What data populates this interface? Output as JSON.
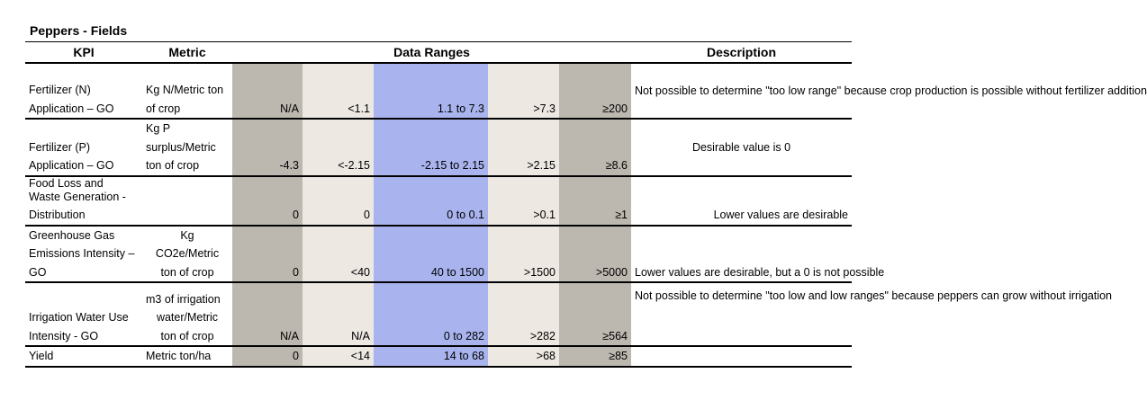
{
  "title": "Peppers - Fields",
  "headers": {
    "kpi": "KPI",
    "metric": "Metric",
    "ranges": "Data Ranges",
    "description": "Description"
  },
  "rows": [
    {
      "kpi": [
        "Fertilizer (N)",
        "Application – GO"
      ],
      "metric": [
        "Kg N/Metric ton",
        "of crop"
      ],
      "r1": "N/A",
      "r2": "<1.1",
      "r3": "1.1 to 7.3",
      "r4": ">7.3",
      "r5": "≥200",
      "description": "Not possible to determine \"too low range\" because crop production is possible without fertilizer addition"
    },
    {
      "kpi": [
        "Fertilizer (P)",
        "Application – GO"
      ],
      "metric": [
        "Kg P",
        "surplus/Metric",
        "ton of crop"
      ],
      "r1": "-4.3",
      "r2": "<-2.15",
      "r3": "-2.15 to 2.15",
      "r4": ">2.15",
      "r5": "≥8.6",
      "description": "Desirable value is 0"
    },
    {
      "kpi": [
        "Food Loss and",
        "Waste Generation -",
        "Distribution"
      ],
      "metric": [],
      "r1": "0",
      "r2": "0",
      "r3": "0 to 0.1",
      "r4": ">0.1",
      "r5": "≥1",
      "description": "Lower values are desirable"
    },
    {
      "kpi": [
        "Greenhouse Gas",
        "Emissions Intensity –",
        "GO"
      ],
      "metric": [
        "Kg",
        "CO2e/Metric",
        "ton of crop"
      ],
      "r1": "0",
      "r2": "<40",
      "r3": "40 to 1500",
      "r4": ">1500",
      "r5": ">5000",
      "description": "Lower values are desirable, but a 0 is not possible"
    },
    {
      "kpi": [
        "Irrigation Water Use",
        "Intensity - GO"
      ],
      "metric": [
        "m3 of irrigation",
        "water/Metric",
        "ton of crop"
      ],
      "r1": "N/A",
      "r2": "N/A",
      "r3": "0 to 282",
      "r4": ">282",
      "r5": "≥564",
      "description": "Not possible to determine \"too low and low ranges\" because peppers can grow without irrigation"
    },
    {
      "kpi": [
        "Yield"
      ],
      "metric": [
        "Metric ton/ha"
      ],
      "r1": "0",
      "r2": "<14",
      "r3": "14  to 68",
      "r4": ">68",
      "r5": "≥85",
      "description": ""
    }
  ],
  "colors": {
    "range_outer": "#bcb7af",
    "range_mid": "#ede8e2",
    "range_desirable": "#a9b4ee"
  }
}
